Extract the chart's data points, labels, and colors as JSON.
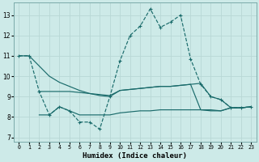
{
  "xlabel": "Humidex (Indice chaleur)",
  "background_color": "#cdeae8",
  "grid_color": "#b8d8d5",
  "line_color": "#1a6b6b",
  "xlim": [
    -0.5,
    23.5
  ],
  "ylim": [
    6.8,
    13.6
  ],
  "yticks": [
    7,
    8,
    9,
    10,
    11,
    12,
    13
  ],
  "xticks": [
    0,
    1,
    2,
    3,
    4,
    5,
    6,
    7,
    8,
    9,
    10,
    11,
    12,
    13,
    14,
    15,
    16,
    17,
    18,
    19,
    20,
    21,
    22,
    23
  ],
  "line1_x": [
    0,
    1,
    2,
    3,
    4,
    5,
    6,
    7,
    8,
    9,
    10,
    11,
    12,
    13,
    14,
    15,
    16,
    17,
    18,
    19,
    20,
    21,
    22,
    23
  ],
  "line1_y": [
    11.0,
    11.0,
    9.25,
    8.1,
    8.5,
    8.3,
    7.75,
    7.75,
    7.4,
    9.0,
    10.75,
    12.0,
    12.45,
    13.3,
    12.4,
    12.65,
    13.0,
    10.85,
    9.6,
    9.0,
    8.85,
    8.45,
    8.45,
    8.5
  ],
  "line2_x": [
    0,
    1,
    2,
    3,
    4,
    5,
    6,
    7,
    8,
    9,
    10,
    11,
    12,
    13,
    14,
    15,
    16,
    17,
    18,
    19,
    20,
    21,
    22,
    23
  ],
  "line2_y": [
    11.0,
    11.0,
    10.5,
    10.0,
    9.7,
    9.5,
    9.3,
    9.15,
    9.05,
    9.0,
    9.3,
    9.35,
    9.4,
    9.45,
    9.5,
    9.5,
    9.55,
    9.6,
    9.65,
    9.0,
    8.85,
    8.45,
    8.45,
    8.5
  ],
  "line3_x": [
    2,
    3,
    4,
    5,
    6,
    7,
    8,
    9,
    10,
    11,
    12,
    13,
    14,
    15,
    16,
    17,
    18,
    19,
    20,
    21,
    22,
    23
  ],
  "line3_y": [
    9.25,
    9.25,
    9.25,
    9.25,
    9.2,
    9.15,
    9.1,
    9.05,
    9.3,
    9.35,
    9.4,
    9.45,
    9.5,
    9.5,
    9.55,
    9.6,
    8.35,
    8.3,
    8.3,
    8.45,
    8.45,
    8.5
  ],
  "line4_x": [
    2,
    3,
    4,
    5,
    6,
    7,
    8,
    9,
    10,
    11,
    12,
    13,
    14,
    15,
    16,
    17,
    18,
    19,
    20,
    21,
    22,
    23
  ],
  "line4_y": [
    8.1,
    8.1,
    8.5,
    8.3,
    8.1,
    8.1,
    8.1,
    8.1,
    8.2,
    8.25,
    8.3,
    8.3,
    8.35,
    8.35,
    8.35,
    8.35,
    8.35,
    8.35,
    8.3,
    8.45,
    8.45,
    8.5
  ]
}
